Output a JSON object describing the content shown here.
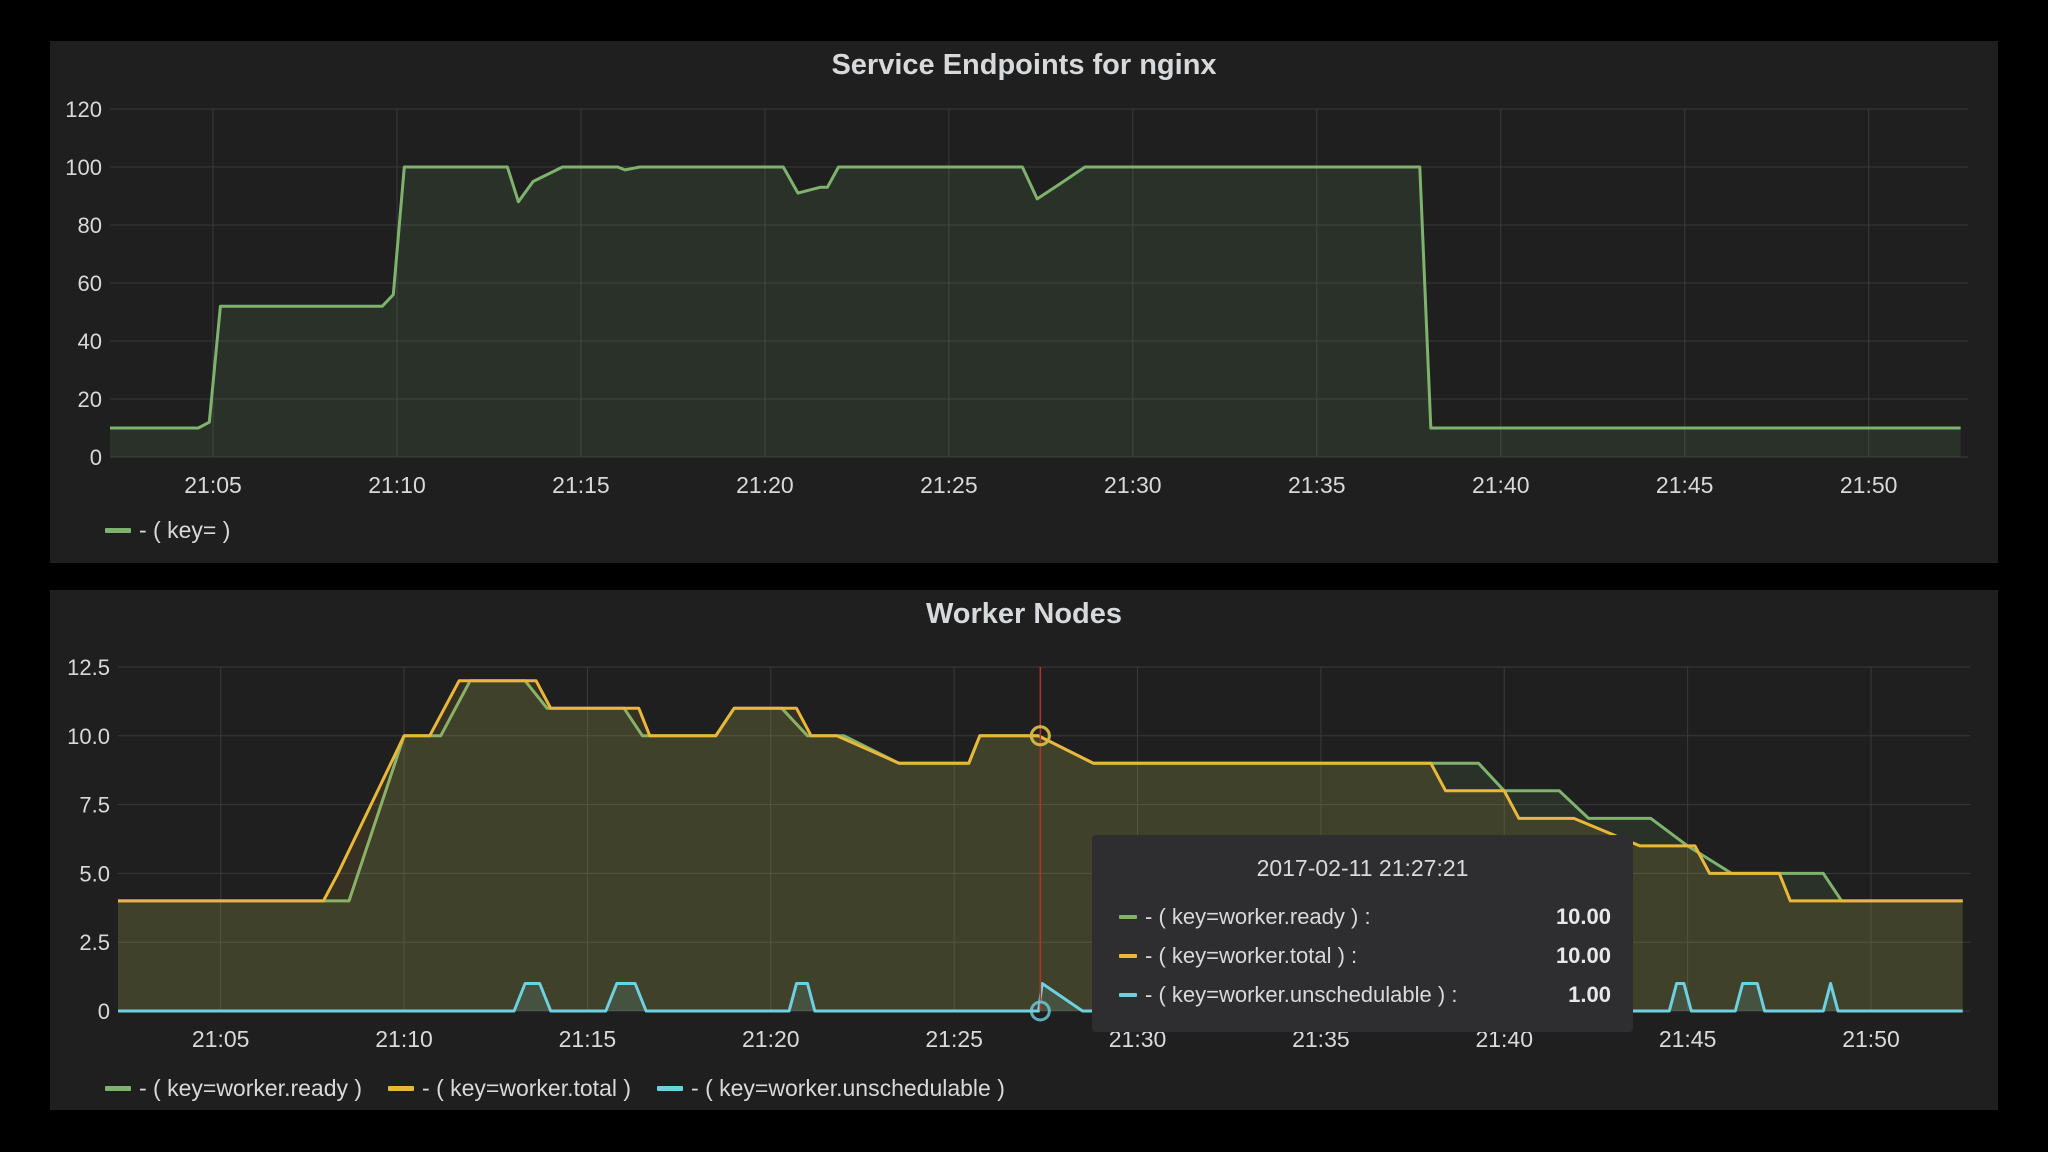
{
  "panels": {
    "endpoints": {
      "title": "Service Endpoints for nginx",
      "legend": [
        {
          "label": "- ( key= )",
          "color": "#7eb26d"
        }
      ]
    },
    "workers": {
      "title": "Worker Nodes",
      "legend": [
        {
          "label": "- ( key=worker.ready )",
          "color": "#7eb26d"
        },
        {
          "label": "- ( key=worker.total )",
          "color": "#eab839"
        },
        {
          "label": "- ( key=worker.unschedulable )",
          "color": "#6ed0e0"
        }
      ],
      "tooltip": {
        "time": "2017-02-11 21:27:21",
        "rows": [
          {
            "label": "- ( key=worker.ready ) :",
            "value": "10.00",
            "color": "#7eb26d"
          },
          {
            "label": "- ( key=worker.total ) :",
            "value": "10.00",
            "color": "#eab839"
          },
          {
            "label": "- ( key=worker.unschedulable ) :",
            "value": "1.00",
            "color": "#6ed0e0"
          }
        ]
      }
    }
  },
  "chart_data": [
    {
      "type": "area",
      "title": "Service Endpoints for nginx",
      "x_ticks": [
        "21:05",
        "21:10",
        "21:15",
        "21:20",
        "21:25",
        "21:30",
        "21:35",
        "21:40",
        "21:45",
        "21:50"
      ],
      "x_tick_minutes": [
        5,
        10,
        15,
        20,
        25,
        30,
        35,
        40,
        45,
        50
      ],
      "xlim_minutes": [
        2.2,
        52.7
      ],
      "ylim": [
        0,
        120
      ],
      "y_ticks": [
        "0",
        "20",
        "40",
        "60",
        "80",
        "100",
        "120"
      ],
      "y_tick_values": [
        0,
        20,
        40,
        60,
        80,
        100,
        120
      ],
      "grid": true,
      "legend_position": "bottom-left",
      "series": [
        {
          "name": "- ( key= )",
          "color": "#7eb26d",
          "x": [
            2.2,
            4.6,
            4.9,
            5.2,
            7.3,
            9.6,
            9.9,
            10.2,
            13.0,
            13.3,
            13.7,
            14.5,
            15.4,
            16.0,
            16.2,
            16.6,
            17.0,
            18.5,
            20.5,
            20.9,
            21.2,
            21.5,
            21.7,
            22.0,
            25.5,
            27.0,
            27.4,
            28.0,
            28.7,
            30.2,
            36.5,
            37.8,
            38.1,
            52.5
          ],
          "values": [
            10,
            10,
            12,
            52,
            52,
            52,
            56,
            100,
            100,
            88,
            95,
            100,
            100,
            100,
            99,
            100,
            100,
            100,
            100,
            91,
            92,
            93,
            93,
            100,
            100,
            100,
            89,
            94,
            100,
            100,
            100,
            100,
            10,
            10
          ]
        }
      ]
    },
    {
      "type": "area",
      "title": "Worker Nodes",
      "x_ticks": [
        "21:05",
        "21:10",
        "21:15",
        "21:20",
        "21:25",
        "21:30",
        "21:35",
        "21:40",
        "21:45",
        "21:50"
      ],
      "x_tick_minutes": [
        5,
        10,
        15,
        20,
        25,
        30,
        35,
        40,
        45,
        50
      ],
      "xlim_minutes": [
        2.2,
        52.7
      ],
      "ylim": [
        0,
        12.5
      ],
      "y_ticks": [
        "0",
        "2.5",
        "5.0",
        "7.5",
        "10.0",
        "12.5"
      ],
      "y_tick_values": [
        0,
        2.5,
        5,
        7.5,
        10,
        12.5
      ],
      "grid": true,
      "legend_position": "bottom-left",
      "crosshair_minute": 27.35,
      "series": [
        {
          "name": "- ( key=worker.ready )",
          "color": "#7eb26d",
          "x": [
            2.2,
            8.0,
            8.5,
            10.0,
            11.0,
            11.8,
            13.3,
            13.9,
            16.0,
            16.5,
            18.5,
            19.0,
            20.3,
            21.0,
            21.5,
            22.0,
            23.5,
            25.0,
            25.4,
            25.7,
            27.3,
            28.8,
            38.0,
            39.3,
            40.0,
            41.5,
            42.3,
            43.7,
            44.0,
            45.0,
            46.2,
            48.7,
            49.2,
            52.5
          ],
          "values": [
            4,
            4,
            4,
            10,
            10,
            12,
            12,
            11,
            11,
            10,
            10,
            11,
            11,
            10,
            10,
            10,
            9,
            9,
            9,
            10,
            10,
            9,
            9,
            9,
            8,
            8,
            7,
            7,
            7,
            6,
            5,
            5,
            4,
            4
          ]
        },
        {
          "name": "- ( key=worker.total )",
          "color": "#eab839",
          "x": [
            2.2,
            7.8,
            8.2,
            10.0,
            10.7,
            11.5,
            13.6,
            14.0,
            16.4,
            16.7,
            18.5,
            19.0,
            20.7,
            21.1,
            21.8,
            23.5,
            25.0,
            25.4,
            25.7,
            27.3,
            28.8,
            38.0,
            38.4,
            40.0,
            40.4,
            41.5,
            41.9,
            43.7,
            44.0,
            45.2,
            45.6,
            47.5,
            47.8,
            49.2,
            52.5
          ],
          "values": [
            4,
            4,
            5,
            10,
            10,
            12,
            12,
            11,
            11,
            10,
            10,
            11,
            11,
            10,
            10,
            9,
            9,
            9,
            10,
            10,
            9,
            9,
            8,
            8,
            7,
            7,
            7,
            6,
            6,
            6,
            5,
            5,
            4,
            4,
            4
          ]
        },
        {
          "name": "- ( key=worker.unschedulable )",
          "color": "#6ed0e0",
          "x": [
            2.2,
            13.0,
            13.3,
            13.7,
            14.0,
            15.5,
            15.8,
            16.3,
            16.6,
            20.5,
            20.7,
            21.0,
            21.2,
            27.3,
            27.4,
            28.5,
            29.0,
            44.5,
            44.7,
            44.9,
            45.1,
            46.3,
            46.5,
            46.9,
            47.1,
            48.7,
            48.9,
            49.1,
            52.5
          ],
          "values": [
            0,
            0,
            1,
            1,
            0,
            0,
            1,
            1,
            0,
            0,
            1,
            1,
            0,
            0,
            1,
            0,
            0,
            0,
            1,
            1,
            0,
            0,
            1,
            1,
            0,
            0,
            1,
            0,
            0
          ]
        }
      ]
    }
  ]
}
